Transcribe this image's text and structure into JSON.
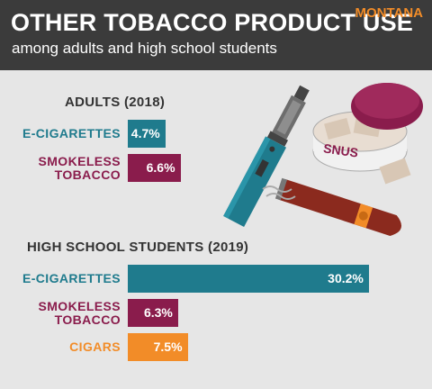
{
  "header": {
    "title": "OTHER TOBACCO PRODUCT USE",
    "subtitle": "among adults and high school students",
    "state": "MONTANA"
  },
  "illustration": {
    "can_label": "SNUS"
  },
  "chart_data": [
    {
      "type": "bar",
      "title": "ADULTS (2018)",
      "categories": [
        "E-CIGARETTES",
        "SMOKELESS TOBACCO"
      ],
      "values": [
        4.7,
        6.6
      ],
      "value_labels": [
        "4.7%",
        "6.6%"
      ],
      "colors": [
        "#1f7b8d",
        "#8a1c4c"
      ]
    },
    {
      "type": "bar",
      "title": "HIGH SCHOOL STUDENTS (2019)",
      "categories": [
        "E-CIGARETTES",
        "SMOKELESS TOBACCO",
        "CIGARS"
      ],
      "values": [
        30.2,
        6.3,
        7.5
      ],
      "value_labels": [
        "30.2%",
        "6.3%",
        "7.5%"
      ],
      "colors": [
        "#1f7b8d",
        "#8a1c4c",
        "#f28c28"
      ]
    }
  ]
}
